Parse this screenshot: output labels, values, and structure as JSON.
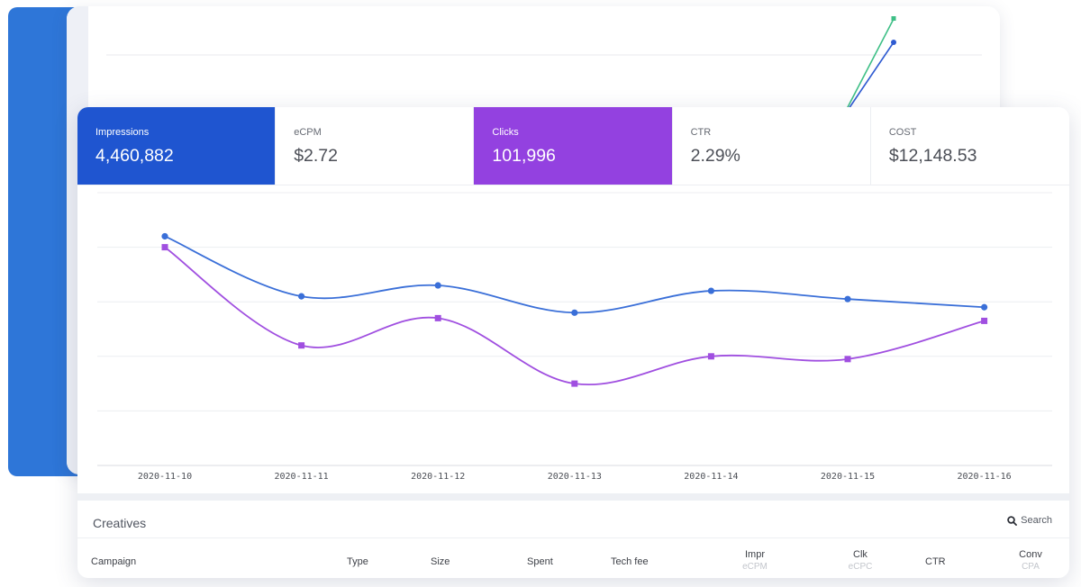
{
  "metrics": [
    {
      "label": "Impressions",
      "value": "4,460,882",
      "active": true,
      "color": "#1f55d0"
    },
    {
      "label": "eCPM",
      "value": "$2.72",
      "active": false
    },
    {
      "label": "Clicks",
      "value": "101,996",
      "active": true,
      "color": "#9341e0"
    },
    {
      "label": "CTR",
      "value": "2.29%",
      "active": false
    },
    {
      "label": "COST",
      "value": "$12,148.53",
      "active": false
    }
  ],
  "chart_data": {
    "type": "line",
    "x": [
      "2020-11-10",
      "2020-11-11",
      "2020-11-12",
      "2020-11-13",
      "2020-11-14",
      "2020-11-15",
      "2020-11-16"
    ],
    "series": [
      {
        "metric": "Impressions",
        "color": "#3a6fd8",
        "marker": "circle",
        "values": [
          84,
          62,
          66,
          56,
          64,
          61,
          58
        ]
      },
      {
        "metric": "Clicks",
        "color": "#a04fe0",
        "marker": "square",
        "values": [
          80,
          44,
          54,
          30,
          40,
          39,
          53
        ]
      }
    ],
    "ylim": [
      0,
      100
    ],
    "grid": true,
    "legend": "none"
  },
  "creatives": {
    "title": "Creatives",
    "search_label": "Search",
    "columns": [
      {
        "label": "Campaign"
      },
      {
        "label": "Type"
      },
      {
        "label": "Size"
      },
      {
        "label": "Spent"
      },
      {
        "label": "Tech fee"
      },
      {
        "label": "Impr",
        "sub": "eCPM"
      },
      {
        "label": "Clk",
        "sub": "eCPC"
      },
      {
        "label": "CTR"
      },
      {
        "label": "Conv",
        "sub": "CPA"
      }
    ]
  },
  "background_chart": {
    "series_colors": [
      "#3ebf86",
      "#2f5bd1"
    ]
  }
}
